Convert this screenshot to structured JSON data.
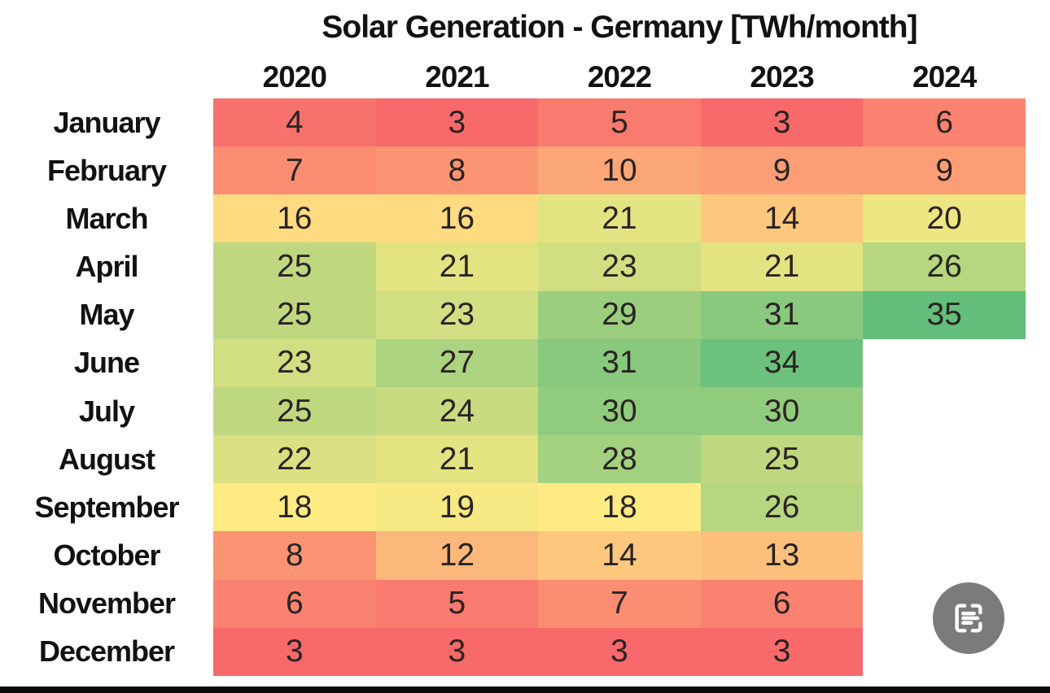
{
  "page": {
    "background_color": "#ffffff",
    "bottom_bar_color": "#0b0b0b"
  },
  "chart_data": {
    "type": "heatmap",
    "title": "Solar Generation - Germany [TWh/month]",
    "unit": "TWh/month",
    "columns": [
      "2020",
      "2021",
      "2022",
      "2023",
      "2024"
    ],
    "rows": [
      "January",
      "February",
      "March",
      "April",
      "May",
      "June",
      "July",
      "August",
      "September",
      "October",
      "November",
      "December"
    ],
    "values": [
      [
        4,
        3,
        5,
        3,
        6
      ],
      [
        7,
        8,
        10,
        9,
        9
      ],
      [
        16,
        16,
        21,
        14,
        20
      ],
      [
        25,
        21,
        23,
        21,
        26
      ],
      [
        25,
        23,
        29,
        31,
        35
      ],
      [
        23,
        27,
        31,
        34,
        null
      ],
      [
        25,
        24,
        30,
        30,
        null
      ],
      [
        22,
        21,
        28,
        25,
        null
      ],
      [
        18,
        19,
        18,
        26,
        null
      ],
      [
        8,
        12,
        14,
        13,
        null
      ],
      [
        6,
        5,
        7,
        6,
        null
      ],
      [
        3,
        3,
        3,
        3,
        null
      ]
    ],
    "color_scale": {
      "style": "3-color red-yellow-green",
      "min": {
        "value": 3,
        "color": "#F8696B"
      },
      "mid": {
        "value": 18,
        "color": "#FFEB84"
      },
      "max": {
        "value": 35,
        "color": "#63BE7B"
      }
    },
    "value_text_color": "#2a2423",
    "label_text_color": "#121212",
    "legend": "none",
    "grid": "off"
  },
  "overlay": {
    "scan_button": {
      "icon": "scan-text-icon",
      "background": "#7b7b7b",
      "glyph_color": "#ffffff"
    }
  }
}
